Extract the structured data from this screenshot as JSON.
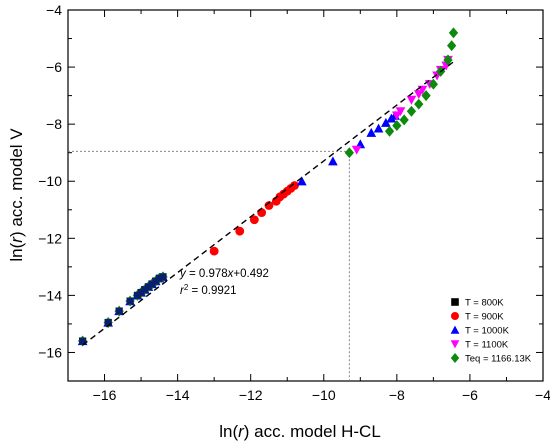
{
  "chart_data": {
    "type": "scatter",
    "xlabel_parts": {
      "pre": "ln(",
      "var": "r",
      "post": ") acc. model H-CL"
    },
    "ylabel_parts": {
      "pre": "ln(",
      "var": "r",
      "post": ") acc. model V"
    },
    "xlim": [
      -17,
      -4
    ],
    "ylim": [
      -17,
      -4
    ],
    "xticks": [
      -16,
      -14,
      -12,
      -10,
      -8,
      -6,
      -4
    ],
    "yticks": [
      -16,
      -14,
      -12,
      -10,
      -8,
      -6,
      -4
    ],
    "grid": false,
    "legend_position": "bottom-right",
    "annotation": {
      "equation": {
        "y": "y",
        "eq": " = 0.978",
        "x": "x",
        "rest": "+0.492"
      },
      "r2": {
        "r": "r",
        "sup": "2",
        "rest": " = 0.9921"
      }
    },
    "fit_line": {
      "slope": 0.978,
      "intercept": 0.492,
      "x_range": [
        -16.6,
        -6.4
      ],
      "style": "dashed",
      "color": "#000000"
    },
    "reference_lines": {
      "x": -9.3,
      "y": -8.95,
      "style": "dotted",
      "color": "#777777"
    },
    "series": [
      {
        "name": "T = 800K",
        "marker": "square",
        "color": "#000000",
        "x": [
          -16.6,
          -15.9,
          -15.6,
          -15.3,
          -15.1,
          -15.0,
          -14.9,
          -14.8,
          -14.7,
          -14.6,
          -14.5,
          -14.4
        ],
        "y": [
          -15.6,
          -14.95,
          -14.55,
          -14.2,
          -14.0,
          -13.9,
          -13.8,
          -13.7,
          -13.6,
          -13.5,
          -13.4,
          -13.35
        ]
      },
      {
        "name": "T = 900K",
        "marker": "circle",
        "color": "#ff0000",
        "x": [
          -13.0,
          -12.3,
          -11.9,
          -11.7,
          -11.5,
          -11.3,
          -11.2,
          -11.1,
          -11.0,
          -10.9,
          -10.8
        ],
        "y": [
          -12.45,
          -11.75,
          -11.35,
          -11.1,
          -10.85,
          -10.7,
          -10.55,
          -10.45,
          -10.35,
          -10.25,
          -10.15
        ]
      },
      {
        "name": "T = 1000K",
        "marker": "triangle-up",
        "color": "#0000ff",
        "x": [
          -16.6,
          -15.9,
          -15.6,
          -15.3,
          -15.1,
          -15.0,
          -14.9,
          -14.8,
          -14.7,
          -14.6,
          -14.5,
          -14.4,
          -10.6,
          -9.75,
          -9.0,
          -8.7,
          -8.5,
          -8.3,
          -8.15,
          -8.05
        ],
        "y": [
          -15.6,
          -14.95,
          -14.55,
          -14.2,
          -14.0,
          -13.9,
          -13.8,
          -13.7,
          -13.6,
          -13.5,
          -13.4,
          -13.35,
          -10.0,
          -9.3,
          -8.7,
          -8.3,
          -8.15,
          -7.95,
          -7.8,
          -7.7
        ]
      },
      {
        "name": "T = 1100K",
        "marker": "triangle-down",
        "color": "#ff00ff",
        "x": [
          -9.1,
          -8.0,
          -7.9,
          -7.6,
          -7.4,
          -7.3,
          -7.1,
          -6.9,
          -6.8,
          -6.65,
          -6.6
        ],
        "y": [
          -8.9,
          -7.7,
          -7.55,
          -7.15,
          -6.95,
          -6.8,
          -6.6,
          -6.3,
          -6.1,
          -5.95,
          -5.75
        ]
      },
      {
        "name": "Teq = 1166.13K",
        "marker": "diamond",
        "color": "#0b8a0b",
        "x": [
          -16.6,
          -15.9,
          -15.6,
          -15.3,
          -15.1,
          -15.0,
          -14.9,
          -14.8,
          -14.7,
          -14.6,
          -14.5,
          -14.4,
          -9.3,
          -8.2,
          -8.0,
          -7.8,
          -7.6,
          -7.4,
          -7.2,
          -7.0,
          -6.8,
          -6.6,
          -6.5,
          -6.45
        ],
        "y": [
          -15.6,
          -14.95,
          -14.55,
          -14.2,
          -14.0,
          -13.9,
          -13.8,
          -13.7,
          -13.6,
          -13.5,
          -13.4,
          -13.35,
          -9.0,
          -8.25,
          -8.05,
          -7.85,
          -7.55,
          -7.3,
          -7.0,
          -6.6,
          -6.15,
          -5.75,
          -5.25,
          -4.8
        ]
      }
    ]
  }
}
